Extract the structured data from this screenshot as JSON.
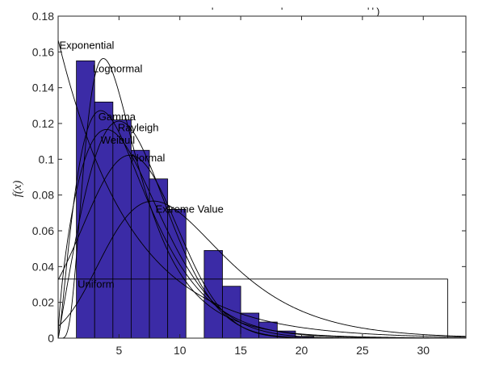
{
  "chart_data": {
    "type": "bar",
    "title": "",
    "xlabel": "",
    "ylabel": "f(x)",
    "xlim": [
      0,
      33.5
    ],
    "ylim": [
      0,
      0.18
    ],
    "grid": false,
    "xticks": [
      5,
      10,
      15,
      20,
      25,
      30
    ],
    "xtick_labels": [
      "5",
      "10",
      "15",
      "20",
      "25",
      "30"
    ],
    "yticks": [
      0,
      0.02,
      0.04,
      0.06,
      0.08,
      0.1,
      0.12,
      0.14,
      0.16,
      0.18
    ],
    "ytick_labels": [
      "0",
      "0.02",
      "0.04",
      "0.06",
      "0.08",
      "0.1",
      "0.12",
      "0.14",
      "0.16",
      "0.18"
    ],
    "histogram": {
      "bar_color": "#3b2ba6",
      "edge_color": "#000000",
      "bins": [
        {
          "x0": 1.5,
          "x1": 3.0,
          "value": 0.155
        },
        {
          "x0": 3.0,
          "x1": 4.5,
          "value": 0.132
        },
        {
          "x0": 4.5,
          "x1": 6.0,
          "value": 0.122
        },
        {
          "x0": 6.0,
          "x1": 7.5,
          "value": 0.105
        },
        {
          "x0": 7.5,
          "x1": 9.0,
          "value": 0.089
        },
        {
          "x0": 9.0,
          "x1": 10.5,
          "value": 0.072
        },
        {
          "x0": 10.5,
          "x1": 12.0,
          "value": 0.0
        },
        {
          "x0": 12.0,
          "x1": 13.5,
          "value": 0.049
        },
        {
          "x0": 13.5,
          "x1": 15.0,
          "value": 0.029
        },
        {
          "x0": 15.0,
          "x1": 16.5,
          "value": 0.014
        },
        {
          "x0": 16.5,
          "x1": 18.0,
          "value": 0.009
        },
        {
          "x0": 18.0,
          "x1": 19.5,
          "value": 0.004
        },
        {
          "x0": 19.5,
          "x1": 21.0,
          "value": 0.001
        }
      ]
    },
    "series": [
      {
        "name": "Exponential",
        "dist": "exponential",
        "params": {
          "mu": 6.0
        },
        "label_at": [
          0.1,
          0.164
        ]
      },
      {
        "name": "Lognormal",
        "dist": "lognormal",
        "params": {
          "mu": 1.65,
          "sigma": 0.58
        },
        "label_at": [
          2.85,
          0.151
        ]
      },
      {
        "name": "Gamma",
        "dist": "gamma",
        "params": {
          "k": 2.4,
          "theta": 2.5
        },
        "label_at": [
          3.3,
          0.124
        ]
      },
      {
        "name": "Rayleigh",
        "dist": "rayleigh",
        "params": {
          "sigma": 5.0
        },
        "label_at": [
          4.9,
          0.118
        ]
      },
      {
        "name": "Weibull",
        "dist": "weibull",
        "params": {
          "k": 1.7,
          "lambda": 6.7
        },
        "label_at": [
          3.5,
          0.111
        ]
      },
      {
        "name": "Normal",
        "dist": "normal",
        "params": {
          "mu": 5.9,
          "sigma": 3.9
        },
        "label_at": [
          6.0,
          0.101
        ]
      },
      {
        "name": "Extreme Value",
        "dist": "extreme_value",
        "params": {
          "mu": 7.8,
          "beta": 4.8
        },
        "label_at": [
          8.0,
          0.0725
        ]
      },
      {
        "name": "Uniform",
        "dist": "uniform",
        "params": {
          "a": 0.0,
          "b": 32.0,
          "height": 0.033
        },
        "label_at": [
          1.6,
          0.0305
        ]
      }
    ]
  },
  "top_fragments": [
    "'",
    "'",
    "' ' )"
  ]
}
